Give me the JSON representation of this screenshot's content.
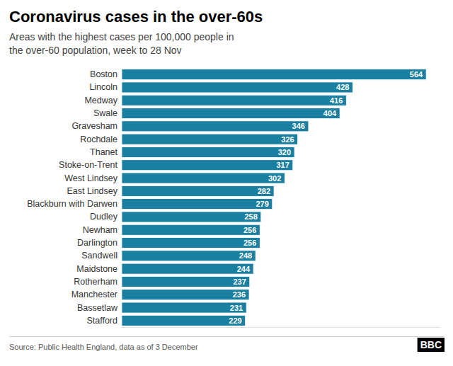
{
  "chart_data": {
    "type": "bar",
    "orientation": "horizontal",
    "title": "Coronavirus cases in the over-60s",
    "subtitle": "Areas with the highest cases per 100,000 people in\nthe over-60 population, week to 28 Nov",
    "source": "Source: Public Health England, data as of 3 December",
    "annotations": [
      "BBC"
    ],
    "categories": [
      "Stafford",
      "Bassetlaw",
      "Manchester",
      "Rotherham",
      "Maidstone",
      "Sandwell",
      "Darlington",
      "Newham",
      "Dudley",
      "Blackburn with Darwen",
      "East Lindsey",
      "West Lindsey",
      "Stoke-on-Trent",
      "Thanet",
      "Rochdale",
      "Gravesham",
      "Swale",
      "Medway",
      "Lincoln",
      "Boston"
    ],
    "values": [
      229,
      231,
      236,
      237,
      244,
      248,
      256,
      256,
      258,
      279,
      282,
      302,
      317,
      320,
      326,
      346,
      404,
      416,
      428,
      564
    ],
    "color": "#1a7fa0",
    "xlim": [
      0,
      590
    ],
    "data_labels": true,
    "tick_labels": "y",
    "grid": false
  }
}
